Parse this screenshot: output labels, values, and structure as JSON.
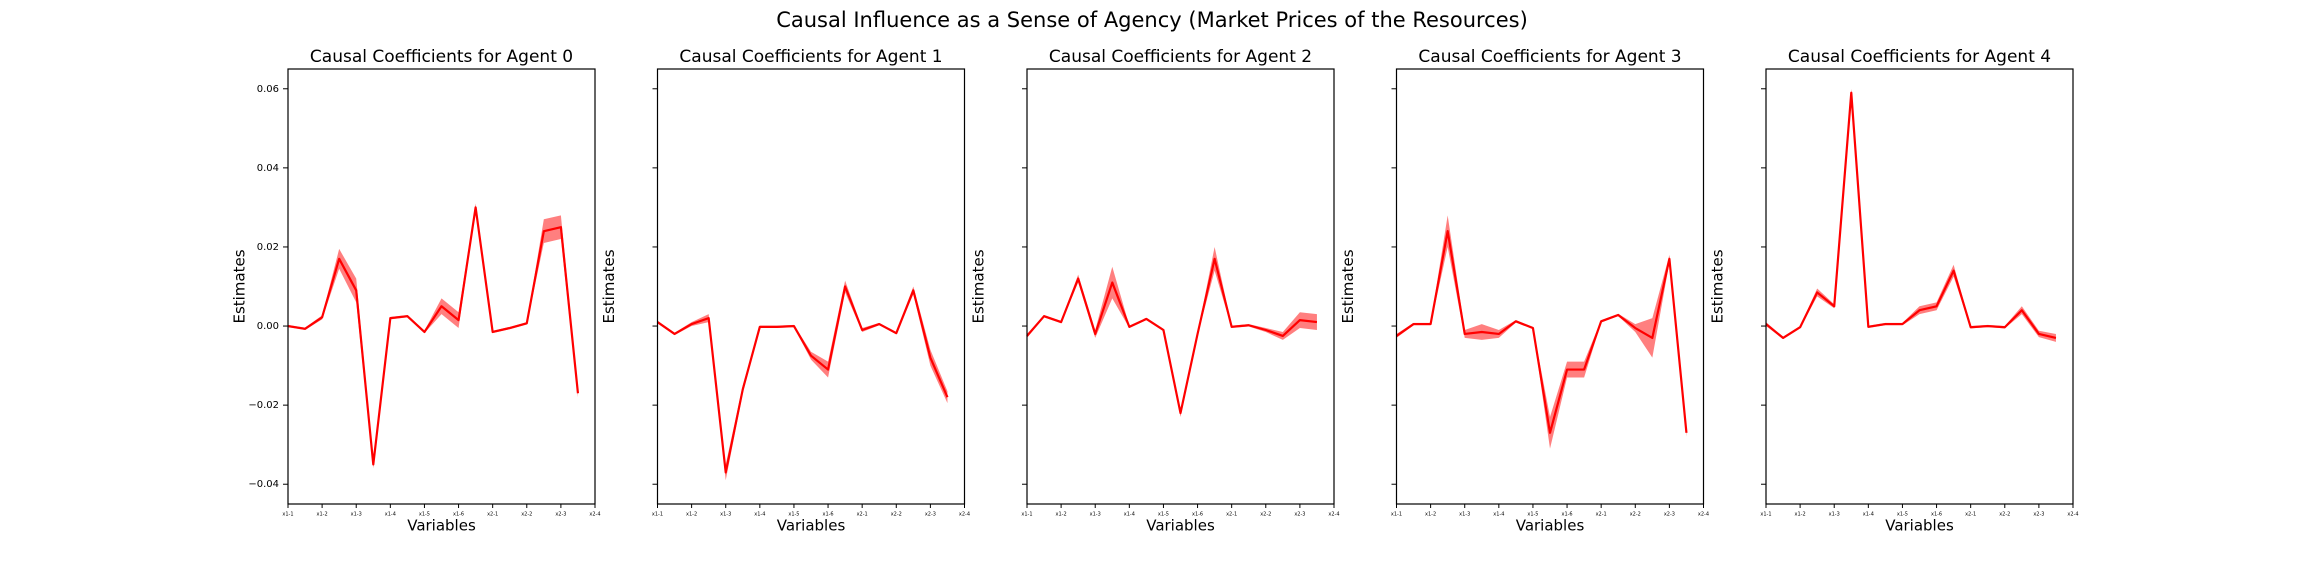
{
  "title": "Causal Influence as a Sense of Agency (Market Prices of the Resources)",
  "chart_data": [
    {
      "type": "line",
      "title": "Causal Coefficients for Agent 0",
      "xlabel": "Variables",
      "ylabel": "Estimates",
      "x": [
        0,
        1,
        2,
        3,
        4,
        5,
        6,
        7,
        8,
        9,
        10,
        11,
        12,
        13,
        14,
        15,
        16,
        17
      ],
      "xlim": [
        0,
        18
      ],
      "xticks": [
        {
          "value": 0,
          "label": "x1-1"
        },
        {
          "value": 2,
          "label": "x1-2"
        },
        {
          "value": 4,
          "label": "x1-3"
        },
        {
          "value": 6,
          "label": "x1-4"
        },
        {
          "value": 8,
          "label": "x1-5"
        },
        {
          "value": 10,
          "label": "x1-6"
        },
        {
          "value": 12,
          "label": "x2-1"
        },
        {
          "value": 14,
          "label": "x2-2"
        },
        {
          "value": 16,
          "label": "x2-3"
        },
        {
          "value": 18,
          "label": "x2-4"
        }
      ],
      "ylim": [
        -0.045,
        0.065
      ],
      "yticks": [
        {
          "value": -0.04,
          "label": "−0.04"
        },
        {
          "value": -0.02,
          "label": "−0.02"
        },
        {
          "value": 0,
          "label": "0.00"
        },
        {
          "value": 0.02,
          "label": "0.02"
        },
        {
          "value": 0.04,
          "label": "0.04"
        },
        {
          "value": 0.06,
          "label": "0.06"
        }
      ],
      "color": "#ff0000",
      "values": [
        0,
        -0.0007,
        0.0022,
        0.017,
        0.009,
        -0.035,
        0.002,
        0.0025,
        -0.0015,
        0.005,
        0.0015,
        0.03,
        -0.0015,
        -0.0005,
        0.0007,
        0.024,
        0.025,
        -0.017
      ],
      "errors": [
        0.0003,
        0.0003,
        0.0005,
        0.0025,
        0.003,
        0.001,
        0.0003,
        0.0003,
        0.0003,
        0.002,
        0.002,
        0.001,
        0.0003,
        0.0003,
        0.0003,
        0.003,
        0.003,
        0.001
      ]
    },
    {
      "type": "line",
      "title": "Causal Coefficients for Agent 1",
      "xlabel": "Variables",
      "ylabel": "Estimates",
      "x": [
        0,
        1,
        2,
        3,
        4,
        5,
        6,
        7,
        8,
        9,
        10,
        11,
        12,
        13,
        14,
        15,
        16,
        17
      ],
      "xlim": [
        0,
        18
      ],
      "xticks": [
        {
          "value": 0,
          "label": "x1-1"
        },
        {
          "value": 2,
          "label": "x1-2"
        },
        {
          "value": 4,
          "label": "x1-3"
        },
        {
          "value": 6,
          "label": "x1-4"
        },
        {
          "value": 8,
          "label": "x1-5"
        },
        {
          "value": 10,
          "label": "x1-6"
        },
        {
          "value": 12,
          "label": "x2-1"
        },
        {
          "value": 14,
          "label": "x2-2"
        },
        {
          "value": 16,
          "label": "x2-3"
        },
        {
          "value": 18,
          "label": "x2-4"
        }
      ],
      "color": "#ff0000",
      "values": [
        0.001,
        -0.002,
        0.0005,
        0.002,
        -0.037,
        -0.016,
        -0.0002,
        -0.0002,
        0,
        -0.0075,
        -0.011,
        0.01,
        -0.001,
        0.0005,
        -0.0018,
        0.009,
        -0.008,
        -0.018
      ],
      "errors": [
        0.0003,
        0.0003,
        0.0005,
        0.001,
        0.002,
        0.001,
        0.0003,
        0.0003,
        0.0003,
        0.001,
        0.002,
        0.0015,
        0.0005,
        0.0003,
        0.0003,
        0.001,
        0.002,
        0.0015
      ]
    },
    {
      "type": "line",
      "title": "Causal Coefficients for Agent 2",
      "xlabel": "Variables",
      "ylabel": "Estimates",
      "x": [
        0,
        1,
        2,
        3,
        4,
        5,
        6,
        7,
        8,
        9,
        10,
        11,
        12,
        13,
        14,
        15,
        16,
        17
      ],
      "xlim": [
        0,
        18
      ],
      "xticks": [
        {
          "value": 0,
          "label": "x1-1"
        },
        {
          "value": 2,
          "label": "x1-2"
        },
        {
          "value": 4,
          "label": "x1-3"
        },
        {
          "value": 6,
          "label": "x1-4"
        },
        {
          "value": 8,
          "label": "x1-5"
        },
        {
          "value": 10,
          "label": "x1-6"
        },
        {
          "value": 12,
          "label": "x2-1"
        },
        {
          "value": 14,
          "label": "x2-2"
        },
        {
          "value": 16,
          "label": "x2-3"
        },
        {
          "value": 18,
          "label": "x2-4"
        }
      ],
      "color": "#ff0000",
      "values": [
        -0.0025,
        0.0025,
        0.001,
        0.012,
        -0.002,
        0.011,
        -0.0002,
        0.0018,
        -0.001,
        -0.022,
        -0.002,
        0.017,
        -0.0002,
        0.0002,
        -0.001,
        -0.0025,
        0.0015,
        0.001
      ],
      "errors": [
        0.0005,
        0.0003,
        0.0003,
        0.001,
        0.001,
        0.004,
        0.0003,
        0.0003,
        0.0003,
        0.001,
        0.0003,
        0.003,
        0.0003,
        0.0003,
        0.0005,
        0.001,
        0.002,
        0.002
      ]
    },
    {
      "type": "line",
      "title": "Causal Coefficients for Agent 3",
      "xlabel": "Variables",
      "ylabel": "Estimates",
      "x": [
        0,
        1,
        2,
        3,
        4,
        5,
        6,
        7,
        8,
        9,
        10,
        11,
        12,
        13,
        14,
        15,
        16,
        17
      ],
      "xlim": [
        0,
        18
      ],
      "xticks": [
        {
          "value": 0,
          "label": "x1-1"
        },
        {
          "value": 2,
          "label": "x1-2"
        },
        {
          "value": 4,
          "label": "x1-3"
        },
        {
          "value": 6,
          "label": "x1-4"
        },
        {
          "value": 8,
          "label": "x1-5"
        },
        {
          "value": 10,
          "label": "x1-6"
        },
        {
          "value": 12,
          "label": "x2-1"
        },
        {
          "value": 14,
          "label": "x2-2"
        },
        {
          "value": 16,
          "label": "x2-3"
        },
        {
          "value": 18,
          "label": "x2-4"
        }
      ],
      "color": "#ff0000",
      "values": [
        -0.0025,
        0.0005,
        0.0005,
        0.024,
        -0.002,
        -0.0015,
        -0.002,
        0.0012,
        -0.0005,
        -0.027,
        -0.011,
        -0.011,
        0.0012,
        0.0028,
        -0.0005,
        -0.003,
        0.017,
        -0.027
      ],
      "errors": [
        0.0005,
        0.0003,
        0.0003,
        0.004,
        0.001,
        0.002,
        0.001,
        0.0003,
        0.0003,
        0.004,
        0.002,
        0.002,
        0.0003,
        0.0003,
        0.001,
        0.005,
        0.001,
        0.001
      ]
    },
    {
      "type": "line",
      "title": "Causal Coefficients for Agent 4",
      "xlabel": "Variables",
      "ylabel": "Estimates",
      "x": [
        0,
        1,
        2,
        3,
        4,
        5,
        6,
        7,
        8,
        9,
        10,
        11,
        12,
        13,
        14,
        15,
        16,
        17
      ],
      "xlim": [
        0,
        18
      ],
      "xticks": [
        {
          "value": 0,
          "label": "x1-1"
        },
        {
          "value": 2,
          "label": "x1-2"
        },
        {
          "value": 4,
          "label": "x1-3"
        },
        {
          "value": 6,
          "label": "x1-4"
        },
        {
          "value": 8,
          "label": "x1-5"
        },
        {
          "value": 10,
          "label": "x1-6"
        },
        {
          "value": 12,
          "label": "x2-1"
        },
        {
          "value": 14,
          "label": "x2-2"
        },
        {
          "value": 16,
          "label": "x2-3"
        },
        {
          "value": 18,
          "label": "x2-4"
        }
      ],
      "color": "#ff0000",
      "values": [
        0.0005,
        -0.003,
        -0.0003,
        0.0085,
        0.005,
        0.059,
        -0.0002,
        0.0005,
        0.0005,
        0.004,
        0.005,
        0.014,
        -0.0003,
        0,
        -0.0003,
        0.004,
        -0.002,
        -0.003
      ],
      "errors": [
        0.0005,
        0.0003,
        0.0003,
        0.001,
        0.0005,
        0.001,
        0.0003,
        0.0003,
        0.0003,
        0.001,
        0.001,
        0.0015,
        0.0003,
        0.0003,
        0.0003,
        0.001,
        0.0008,
        0.001
      ]
    }
  ]
}
